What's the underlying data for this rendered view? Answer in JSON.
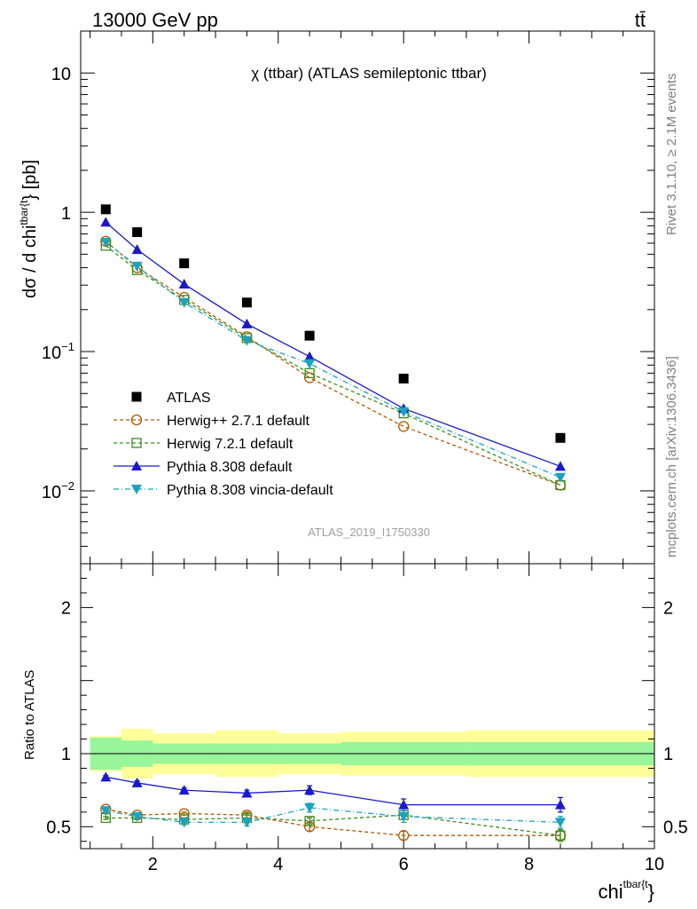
{
  "header": {
    "left": "13000 GeV pp",
    "right": "tt̄"
  },
  "side_text": {
    "top": "Rivet 3.1.10, ≥ 2.1M events",
    "bottom": "mcplots.cern.ch [arXiv:1306.3436]"
  },
  "chart_data": {
    "type": "line",
    "title": "χ (ttbar) (ATLAS semileptonic ttbar)",
    "analysis_label": "ATLAS_2019_I1750330",
    "ylabel": "dσ / d chi^{tbar{t}} [pb]",
    "ylabel_parts": {
      "main": "dσ / d chi",
      "sup": "tbar{t",
      "tail": "} [pb]"
    },
    "ratio_ylabel": "Ratio to ATLAS",
    "xlabel_parts": {
      "main": "chi",
      "sup": "tbar{t",
      "tail": "}"
    },
    "xlim": [
      0.85,
      10
    ],
    "ylim": [
      0.003,
      20
    ],
    "ylog": true,
    "ratio_ylim": [
      0.35,
      2.3
    ],
    "x_ticks": [
      "2",
      "4",
      "6",
      "8",
      "10"
    ],
    "y_ticks": [
      {
        "value": 10,
        "base": "10",
        "exp": ""
      },
      {
        "value": 1,
        "base": "1",
        "exp": ""
      },
      {
        "value": 0.1,
        "base": "10",
        "exp": "−1"
      },
      {
        "value": 0.01,
        "base": "10",
        "exp": "−2"
      }
    ],
    "ratio_ticks": [
      "0.5",
      "1",
      "2"
    ],
    "legend_position": "lower-left",
    "x": [
      1.25,
      1.75,
      2.5,
      3.5,
      4.5,
      6.0,
      8.5
    ],
    "bin_edges": [
      1.0,
      1.5,
      2.0,
      3.0,
      4.0,
      5.0,
      7.0,
      10.0
    ],
    "band_inner": [
      0.11,
      0.09,
      0.07,
      0.07,
      0.07,
      0.08,
      0.08
    ],
    "band_outer": [
      0.12,
      0.17,
      0.14,
      0.16,
      0.14,
      0.15,
      0.16
    ],
    "series": [
      {
        "name": "ATLAS",
        "color": "#000000",
        "marker": "square-filled",
        "dash": "none",
        "values": [
          1.05,
          0.72,
          0.43,
          0.225,
          0.13,
          0.064,
          0.024
        ],
        "ratio": [
          1,
          1,
          1,
          1,
          1,
          1,
          1
        ]
      },
      {
        "name": "Herwig++ 2.7.1 default",
        "color": "#b35900",
        "marker": "circle-open",
        "dash": "4,3",
        "values": [
          0.62,
          0.4,
          0.245,
          0.128,
          0.065,
          0.029,
          0.011
        ],
        "ratio": [
          0.62,
          0.58,
          0.59,
          0.58,
          0.5,
          0.44,
          0.44
        ],
        "ratio_err": [
          0.01,
          0.01,
          0.01,
          0.02,
          0.03,
          0.03,
          0.03
        ]
      },
      {
        "name": "Herwig 7.2.1 default",
        "color": "#3c8c1e",
        "marker": "square-open",
        "dash": "4,3",
        "values": [
          0.575,
          0.385,
          0.235,
          0.125,
          0.07,
          0.036,
          0.011
        ],
        "ratio": [
          0.56,
          0.56,
          0.55,
          0.56,
          0.54,
          0.58,
          0.44
        ],
        "ratio_err": [
          0.01,
          0.01,
          0.01,
          0.02,
          0.02,
          0.03,
          0.04
        ]
      },
      {
        "name": "Pythia 8.308 default",
        "color": "#1a1acc",
        "marker": "triangle-up",
        "dash": "none",
        "values": [
          0.85,
          0.54,
          0.305,
          0.158,
          0.092,
          0.039,
          0.015
        ],
        "ratio": [
          0.84,
          0.8,
          0.75,
          0.73,
          0.75,
          0.65,
          0.65
        ],
        "ratio_err": [
          0.01,
          0.015,
          0.015,
          0.02,
          0.03,
          0.04,
          0.05
        ]
      },
      {
        "name": "Pythia 8.308 vincia-default",
        "color": "#1aa3bf",
        "marker": "triangle-down",
        "dash": "6,3,1,3",
        "values": [
          0.61,
          0.41,
          0.225,
          0.12,
          0.082,
          0.037,
          0.0125
        ],
        "ratio": [
          0.61,
          0.57,
          0.53,
          0.53,
          0.63,
          0.57,
          0.53
        ],
        "ratio_err": [
          0.01,
          0.015,
          0.015,
          0.025,
          0.03,
          0.04,
          0.04
        ]
      }
    ]
  }
}
